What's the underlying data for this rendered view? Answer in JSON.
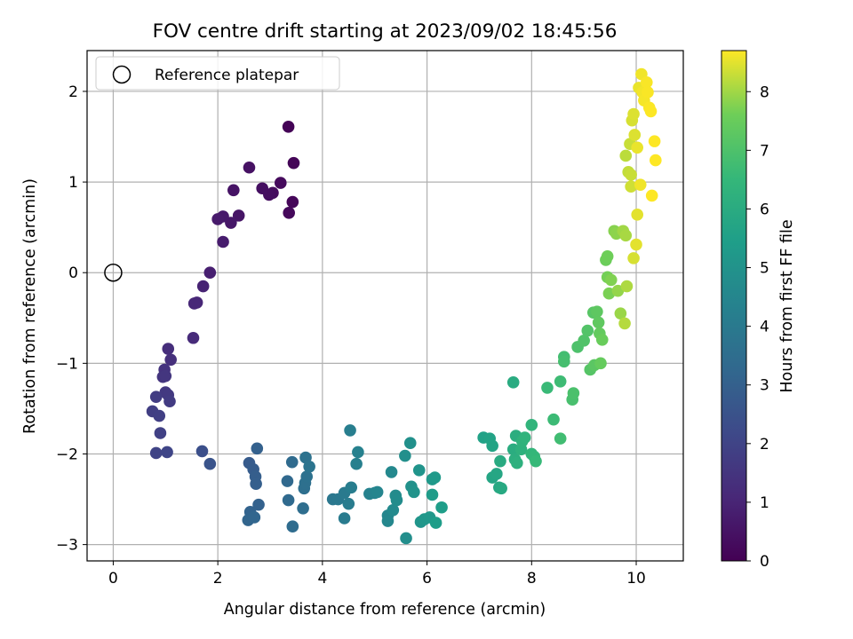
{
  "chart_data": {
    "type": "scatter",
    "title": "FOV centre drift starting at 2023/09/02 18:45:56",
    "xlabel": "Angular distance from reference (arcmin)",
    "ylabel": "Rotation from reference (arcmin)",
    "xlim": [
      -0.5,
      10.9
    ],
    "ylim": [
      -3.18,
      2.45
    ],
    "x_ticks": [
      0,
      2,
      4,
      6,
      8,
      10
    ],
    "y_ticks": [
      -3,
      -2,
      -1,
      0,
      1,
      2
    ],
    "x_tick_labels": [
      "0",
      "2",
      "4",
      "6",
      "8",
      "10"
    ],
    "y_tick_labels": [
      "−3",
      "−2",
      "−1",
      "0",
      "1",
      "2"
    ],
    "grid": true,
    "legend": {
      "placement": "top-left",
      "entries": [
        {
          "label": "Reference platepar",
          "marker": "open-circle"
        }
      ]
    },
    "reference_point": {
      "x": 0,
      "y": 0
    },
    "colorbar": {
      "label": "Hours from first FF file",
      "colormap": "viridis",
      "range": [
        0,
        8.7
      ],
      "ticks": [
        0,
        1,
        2,
        3,
        4,
        5,
        6,
        7,
        8
      ],
      "tick_labels": [
        "0",
        "1",
        "2",
        "3",
        "4",
        "5",
        "6",
        "7",
        "8"
      ]
    },
    "points": [
      {
        "x": 3.35,
        "y": 1.61,
        "hours": 0.05
      },
      {
        "x": 3.45,
        "y": 1.21,
        "hours": 0.1
      },
      {
        "x": 3.43,
        "y": 0.78,
        "hours": 0.15
      },
      {
        "x": 3.36,
        "y": 0.66,
        "hours": 0.2
      },
      {
        "x": 3.2,
        "y": 0.99,
        "hours": 0.25
      },
      {
        "x": 3.05,
        "y": 0.88,
        "hours": 0.3
      },
      {
        "x": 2.98,
        "y": 0.86,
        "hours": 0.35
      },
      {
        "x": 2.85,
        "y": 0.93,
        "hours": 0.4
      },
      {
        "x": 2.6,
        "y": 1.16,
        "hours": 0.45
      },
      {
        "x": 2.3,
        "y": 0.91,
        "hours": 0.5
      },
      {
        "x": 2.4,
        "y": 0.63,
        "hours": 0.55
      },
      {
        "x": 2.25,
        "y": 0.55,
        "hours": 0.6
      },
      {
        "x": 2.1,
        "y": 0.62,
        "hours": 0.65
      },
      {
        "x": 2.0,
        "y": 0.59,
        "hours": 0.7
      },
      {
        "x": 2.1,
        "y": 0.34,
        "hours": 0.75
      },
      {
        "x": 1.85,
        "y": 0.0,
        "hours": 0.85
      },
      {
        "x": 1.72,
        "y": -0.15,
        "hours": 0.95
      },
      {
        "x": 1.6,
        "y": -0.33,
        "hours": 1.05
      },
      {
        "x": 1.55,
        "y": -0.34,
        "hours": 1.1
      },
      {
        "x": 1.53,
        "y": -0.72,
        "hours": 1.2
      },
      {
        "x": 1.05,
        "y": -0.84,
        "hours": 1.3
      },
      {
        "x": 1.1,
        "y": -0.96,
        "hours": 1.35
      },
      {
        "x": 0.98,
        "y": -1.07,
        "hours": 1.45
      },
      {
        "x": 0.95,
        "y": -1.15,
        "hours": 1.5
      },
      {
        "x": 1.0,
        "y": -1.14,
        "hours": 1.55
      },
      {
        "x": 1.0,
        "y": -1.32,
        "hours": 1.6
      },
      {
        "x": 1.05,
        "y": -1.35,
        "hours": 1.65
      },
      {
        "x": 1.08,
        "y": -1.42,
        "hours": 1.7
      },
      {
        "x": 0.82,
        "y": -1.37,
        "hours": 1.75
      },
      {
        "x": 0.75,
        "y": -1.53,
        "hours": 1.8
      },
      {
        "x": 0.88,
        "y": -1.58,
        "hours": 1.85
      },
      {
        "x": 0.9,
        "y": -1.77,
        "hours": 1.9
      },
      {
        "x": 0.82,
        "y": -1.99,
        "hours": 2.0
      },
      {
        "x": 1.03,
        "y": -1.98,
        "hours": 2.05
      },
      {
        "x": 1.7,
        "y": -1.97,
        "hours": 2.4
      },
      {
        "x": 1.85,
        "y": -2.11,
        "hours": 2.55
      },
      {
        "x": 2.6,
        "y": -2.1,
        "hours": 2.8
      },
      {
        "x": 2.68,
        "y": -2.17,
        "hours": 2.85
      },
      {
        "x": 2.72,
        "y": -2.25,
        "hours": 2.9
      },
      {
        "x": 2.73,
        "y": -2.33,
        "hours": 2.95
      },
      {
        "x": 2.75,
        "y": -1.94,
        "hours": 3.0
      },
      {
        "x": 2.78,
        "y": -2.56,
        "hours": 3.05
      },
      {
        "x": 2.62,
        "y": -2.64,
        "hours": 3.1
      },
      {
        "x": 2.58,
        "y": -2.73,
        "hours": 3.15
      },
      {
        "x": 2.7,
        "y": -2.7,
        "hours": 3.2
      },
      {
        "x": 3.33,
        "y": -2.3,
        "hours": 3.3
      },
      {
        "x": 3.35,
        "y": -2.51,
        "hours": 3.35
      },
      {
        "x": 3.42,
        "y": -2.09,
        "hours": 3.4
      },
      {
        "x": 3.43,
        "y": -2.8,
        "hours": 3.45
      },
      {
        "x": 3.63,
        "y": -2.6,
        "hours": 3.5
      },
      {
        "x": 3.65,
        "y": -2.38,
        "hours": 3.55
      },
      {
        "x": 3.67,
        "y": -2.32,
        "hours": 3.6
      },
      {
        "x": 3.7,
        "y": -2.25,
        "hours": 3.65
      },
      {
        "x": 3.68,
        "y": -2.04,
        "hours": 3.7
      },
      {
        "x": 3.75,
        "y": -2.14,
        "hours": 3.75
      },
      {
        "x": 4.2,
        "y": -2.5,
        "hours": 3.9
      },
      {
        "x": 4.3,
        "y": -2.5,
        "hours": 3.95
      },
      {
        "x": 4.42,
        "y": -2.43,
        "hours": 4.0
      },
      {
        "x": 4.42,
        "y": -2.71,
        "hours": 4.05
      },
      {
        "x": 4.5,
        "y": -2.55,
        "hours": 4.1
      },
      {
        "x": 4.55,
        "y": -2.37,
        "hours": 4.15
      },
      {
        "x": 4.53,
        "y": -1.74,
        "hours": 4.2
      },
      {
        "x": 4.65,
        "y": -2.11,
        "hours": 4.25
      },
      {
        "x": 4.68,
        "y": -1.98,
        "hours": 4.3
      },
      {
        "x": 4.9,
        "y": -2.44,
        "hours": 4.35
      },
      {
        "x": 5.0,
        "y": -2.43,
        "hours": 4.4
      },
      {
        "x": 5.05,
        "y": -2.42,
        "hours": 4.45
      },
      {
        "x": 5.25,
        "y": -2.68,
        "hours": 4.5
      },
      {
        "x": 5.25,
        "y": -2.74,
        "hours": 4.55
      },
      {
        "x": 5.32,
        "y": -2.2,
        "hours": 4.6
      },
      {
        "x": 5.35,
        "y": -2.62,
        "hours": 4.65
      },
      {
        "x": 5.4,
        "y": -2.46,
        "hours": 4.7
      },
      {
        "x": 5.42,
        "y": -2.51,
        "hours": 4.75
      },
      {
        "x": 5.6,
        "y": -2.93,
        "hours": 4.8
      },
      {
        "x": 5.58,
        "y": -2.02,
        "hours": 4.85
      },
      {
        "x": 5.68,
        "y": -1.88,
        "hours": 4.9
      },
      {
        "x": 5.7,
        "y": -2.36,
        "hours": 4.95
      },
      {
        "x": 5.75,
        "y": -2.42,
        "hours": 5.0
      },
      {
        "x": 5.85,
        "y": -2.18,
        "hours": 5.05
      },
      {
        "x": 5.88,
        "y": -2.75,
        "hours": 5.1
      },
      {
        "x": 5.95,
        "y": -2.72,
        "hours": 5.15
      },
      {
        "x": 6.05,
        "y": -2.7,
        "hours": 5.2
      },
      {
        "x": 6.1,
        "y": -2.28,
        "hours": 5.25
      },
      {
        "x": 6.15,
        "y": -2.26,
        "hours": 5.3
      },
      {
        "x": 6.1,
        "y": -2.45,
        "hours": 5.35
      },
      {
        "x": 6.17,
        "y": -2.76,
        "hours": 5.4
      },
      {
        "x": 6.28,
        "y": -2.59,
        "hours": 5.45
      },
      {
        "x": 7.08,
        "y": -1.82,
        "hours": 5.6
      },
      {
        "x": 7.2,
        "y": -1.83,
        "hours": 5.65
      },
      {
        "x": 7.25,
        "y": -1.91,
        "hours": 5.7
      },
      {
        "x": 7.25,
        "y": -2.26,
        "hours": 5.75
      },
      {
        "x": 7.33,
        "y": -2.22,
        "hours": 5.8
      },
      {
        "x": 7.38,
        "y": -2.37,
        "hours": 5.85
      },
      {
        "x": 7.42,
        "y": -2.38,
        "hours": 5.9
      },
      {
        "x": 7.4,
        "y": -2.08,
        "hours": 5.95
      },
      {
        "x": 7.65,
        "y": -1.21,
        "hours": 6.0
      },
      {
        "x": 7.65,
        "y": -1.95,
        "hours": 6.05
      },
      {
        "x": 7.7,
        "y": -1.8,
        "hours": 6.1
      },
      {
        "x": 7.68,
        "y": -2.06,
        "hours": 6.15
      },
      {
        "x": 7.72,
        "y": -2.1,
        "hours": 6.2
      },
      {
        "x": 7.8,
        "y": -1.95,
        "hours": 6.25
      },
      {
        "x": 7.82,
        "y": -1.86,
        "hours": 6.3
      },
      {
        "x": 7.87,
        "y": -1.82,
        "hours": 6.35
      },
      {
        "x": 8.0,
        "y": -1.68,
        "hours": 6.4
      },
      {
        "x": 8.0,
        "y": -2.0,
        "hours": 6.45
      },
      {
        "x": 8.05,
        "y": -2.03,
        "hours": 6.5
      },
      {
        "x": 8.08,
        "y": -2.08,
        "hours": 6.55
      },
      {
        "x": 8.3,
        "y": -1.27,
        "hours": 6.6
      },
      {
        "x": 8.42,
        "y": -1.62,
        "hours": 6.65
      },
      {
        "x": 8.55,
        "y": -1.2,
        "hours": 6.7
      },
      {
        "x": 8.55,
        "y": -1.83,
        "hours": 6.75
      },
      {
        "x": 8.62,
        "y": -0.93,
        "hours": 6.8
      },
      {
        "x": 8.62,
        "y": -0.98,
        "hours": 6.85
      },
      {
        "x": 8.78,
        "y": -1.4,
        "hours": 6.9
      },
      {
        "x": 8.8,
        "y": -1.33,
        "hours": 6.95
      },
      {
        "x": 8.88,
        "y": -0.82,
        "hours": 7.0
      },
      {
        "x": 9.0,
        "y": -0.75,
        "hours": 7.05
      },
      {
        "x": 9.07,
        "y": -0.64,
        "hours": 7.1
      },
      {
        "x": 9.12,
        "y": -1.07,
        "hours": 7.15
      },
      {
        "x": 9.18,
        "y": -0.44,
        "hours": 7.2
      },
      {
        "x": 9.2,
        "y": -1.02,
        "hours": 7.25
      },
      {
        "x": 9.25,
        "y": -0.43,
        "hours": 7.3
      },
      {
        "x": 9.28,
        "y": -0.55,
        "hours": 7.35
      },
      {
        "x": 9.3,
        "y": -0.67,
        "hours": 7.4
      },
      {
        "x": 9.32,
        "y": -1.0,
        "hours": 7.45
      },
      {
        "x": 9.35,
        "y": -0.74,
        "hours": 7.5
      },
      {
        "x": 9.42,
        "y": 0.14,
        "hours": 7.55
      },
      {
        "x": 9.45,
        "y": 0.18,
        "hours": 7.6
      },
      {
        "x": 9.45,
        "y": -0.05,
        "hours": 7.65
      },
      {
        "x": 9.48,
        "y": -0.23,
        "hours": 7.7
      },
      {
        "x": 9.52,
        "y": -0.08,
        "hours": 7.75
      },
      {
        "x": 9.58,
        "y": 0.46,
        "hours": 7.8
      },
      {
        "x": 9.62,
        "y": 0.43,
        "hours": 7.85
      },
      {
        "x": 9.65,
        "y": -0.2,
        "hours": 7.9
      },
      {
        "x": 9.7,
        "y": -0.45,
        "hours": 7.95
      },
      {
        "x": 9.75,
        "y": 0.46,
        "hours": 8.0
      },
      {
        "x": 9.8,
        "y": 0.41,
        "hours": 8.05
      },
      {
        "x": 9.82,
        "y": -0.15,
        "hours": 8.1
      },
      {
        "x": 9.78,
        "y": -0.56,
        "hours": 8.15
      },
      {
        "x": 9.8,
        "y": 1.29,
        "hours": 8.2
      },
      {
        "x": 9.85,
        "y": 1.11,
        "hours": 8.25
      },
      {
        "x": 9.88,
        "y": 1.42,
        "hours": 8.3
      },
      {
        "x": 9.9,
        "y": 1.08,
        "hours": 8.3
      },
      {
        "x": 9.9,
        "y": 0.95,
        "hours": 8.35
      },
      {
        "x": 9.92,
        "y": 1.68,
        "hours": 8.4
      },
      {
        "x": 9.95,
        "y": 0.16,
        "hours": 8.4
      },
      {
        "x": 9.95,
        "y": 1.75,
        "hours": 8.45
      },
      {
        "x": 9.97,
        "y": 1.52,
        "hours": 8.45
      },
      {
        "x": 10.0,
        "y": 0.31,
        "hours": 8.5
      },
      {
        "x": 10.02,
        "y": 0.64,
        "hours": 8.5
      },
      {
        "x": 10.02,
        "y": 1.38,
        "hours": 8.55
      },
      {
        "x": 10.05,
        "y": 2.04,
        "hours": 8.55
      },
      {
        "x": 10.08,
        "y": 0.97,
        "hours": 8.6
      },
      {
        "x": 10.1,
        "y": 2.19,
        "hours": 8.6
      },
      {
        "x": 10.12,
        "y": 1.99,
        "hours": 8.62
      },
      {
        "x": 10.15,
        "y": 1.9,
        "hours": 8.64
      },
      {
        "x": 10.2,
        "y": 2.1,
        "hours": 8.66
      },
      {
        "x": 10.22,
        "y": 1.99,
        "hours": 8.67
      },
      {
        "x": 10.25,
        "y": 1.82,
        "hours": 8.68
      },
      {
        "x": 10.28,
        "y": 1.78,
        "hours": 8.69
      },
      {
        "x": 10.3,
        "y": 0.85,
        "hours": 8.7
      },
      {
        "x": 10.35,
        "y": 1.45,
        "hours": 8.7
      },
      {
        "x": 10.37,
        "y": 1.24,
        "hours": 8.7
      }
    ]
  }
}
